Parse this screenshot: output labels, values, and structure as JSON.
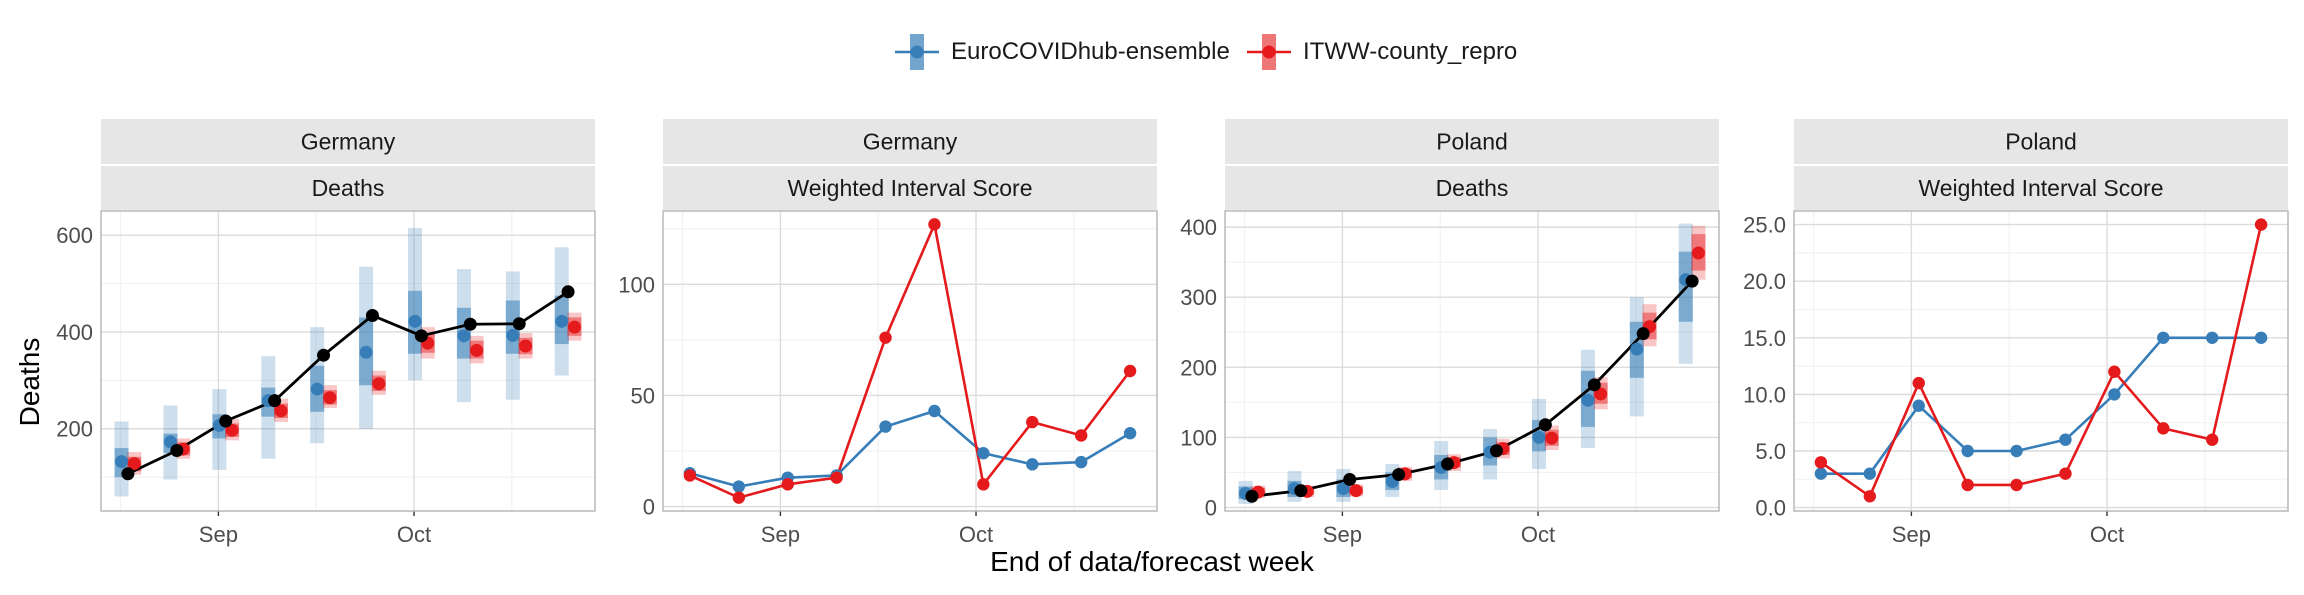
{
  "legend": {
    "items": [
      {
        "label": "EuroCOVIDhub-ensemble",
        "color": "#377EB8"
      },
      {
        "label": "ITWW-county_repro",
        "color": "#E41A1C"
      }
    ]
  },
  "axis_titles": {
    "x": "End of data/forecast week",
    "y": "Deaths"
  },
  "chart_data": [
    {
      "type": "line",
      "strip_top": "Germany",
      "strip_bottom": "Deaths",
      "x_ticks": [
        "Sep",
        "Oct"
      ],
      "y_ticks": [
        200,
        400,
        600
      ],
      "ylim": [
        30,
        650
      ],
      "grid": true,
      "observed": {
        "color": "#000000",
        "x": [
          0,
          1,
          2,
          3,
          4,
          5,
          6,
          7,
          8,
          9
        ],
        "values": [
          107,
          155,
          216,
          258,
          352,
          434,
          392,
          416,
          417,
          483
        ]
      },
      "series": [
        {
          "name": "EuroCOVIDhub-ensemble",
          "color": "#377EB8",
          "x": [
            0,
            1,
            2,
            3,
            4,
            5,
            6,
            7,
            8,
            9
          ],
          "median": [
            132,
            173,
            207,
            258,
            282,
            358,
            422,
            392,
            393,
            422
          ],
          "inner": [
            [
              100,
              160
            ],
            [
              150,
              190
            ],
            [
              180,
              230
            ],
            [
              225,
              285
            ],
            [
              235,
              330
            ],
            [
              290,
              430
            ],
            [
              355,
              485
            ],
            [
              345,
              450
            ],
            [
              355,
              465
            ],
            [
              375,
              475
            ]
          ],
          "outer": [
            [
              60,
              215
            ],
            [
              95,
              248
            ],
            [
              115,
              282
            ],
            [
              138,
              350
            ],
            [
              170,
              410
            ],
            [
              200,
              535
            ],
            [
              300,
              615
            ],
            [
              255,
              530
            ],
            [
              260,
              525
            ],
            [
              310,
              575
            ]
          ]
        },
        {
          "name": "ITWW-county_repro",
          "color": "#E41A1C",
          "x": [
            0,
            1,
            2,
            3,
            4,
            5,
            6,
            7,
            8,
            9
          ],
          "median": [
            128,
            158,
            197,
            237,
            264,
            293,
            377,
            362,
            371,
            410
          ],
          "inner": [
            [
              112,
              142
            ],
            [
              145,
              172
            ],
            [
              183,
              211
            ],
            [
              222,
              252
            ],
            [
              250,
              280
            ],
            [
              278,
              310
            ],
            [
              357,
              397
            ],
            [
              345,
              382
            ],
            [
              354,
              388
            ],
            [
              392,
              430
            ]
          ],
          "outer": [
            [
              105,
              152
            ],
            [
              138,
              180
            ],
            [
              176,
              220
            ],
            [
              214,
              262
            ],
            [
              243,
              290
            ],
            [
              270,
              320
            ],
            [
              345,
              410
            ],
            [
              335,
              392
            ],
            [
              345,
              398
            ],
            [
              382,
              440
            ]
          ]
        }
      ]
    },
    {
      "type": "line",
      "strip_top": "Germany",
      "strip_bottom": "Weighted Interval Score",
      "x_ticks": [
        "Sep",
        "Oct"
      ],
      "y_ticks": [
        0,
        50,
        100
      ],
      "ylim": [
        -2,
        133
      ],
      "grid": true,
      "series": [
        {
          "name": "EuroCOVIDhub-ensemble",
          "color": "#377EB8",
          "x": [
            0,
            1,
            2,
            3,
            4,
            5,
            6,
            7,
            8,
            9
          ],
          "values": [
            15,
            9,
            13,
            14,
            36,
            43,
            24,
            19,
            20,
            33
          ]
        },
        {
          "name": "ITWW-county_repro",
          "color": "#E41A1C",
          "x": [
            0,
            1,
            2,
            3,
            4,
            5,
            6,
            7,
            8,
            9
          ],
          "values": [
            14,
            4,
            10,
            13,
            76,
            127,
            10,
            38,
            32,
            61
          ]
        }
      ]
    },
    {
      "type": "line",
      "strip_top": "Poland",
      "strip_bottom": "Deaths",
      "x_ticks": [
        "Sep",
        "Oct"
      ],
      "y_ticks": [
        0,
        100,
        200,
        300,
        400
      ],
      "ylim": [
        -5,
        423
      ],
      "grid": true,
      "observed": {
        "color": "#000000",
        "x": [
          0,
          1,
          2,
          3,
          4,
          5,
          6,
          7,
          8,
          9
        ],
        "values": [
          16,
          24,
          40,
          47,
          62,
          81,
          118,
          175,
          248,
          323
        ]
      },
      "series": [
        {
          "name": "EuroCOVIDhub-ensemble",
          "color": "#377EB8",
          "x": [
            0,
            1,
            2,
            3,
            4,
            5,
            6,
            7,
            8,
            9
          ],
          "median": [
            20,
            27,
            27,
            37,
            57,
            79,
            100,
            153,
            226,
            325
          ],
          "inner": [
            [
              12,
              30
            ],
            [
              15,
              38
            ],
            [
              15,
              40
            ],
            [
              25,
              50
            ],
            [
              40,
              75
            ],
            [
              60,
              100
            ],
            [
              80,
              125
            ],
            [
              115,
              195
            ],
            [
              185,
              265
            ],
            [
              265,
              365
            ]
          ],
          "outer": [
            [
              5,
              38
            ],
            [
              8,
              52
            ],
            [
              8,
              55
            ],
            [
              15,
              62
            ],
            [
              25,
              95
            ],
            [
              40,
              112
            ],
            [
              55,
              155
            ],
            [
              85,
              225
            ],
            [
              130,
              300
            ],
            [
              205,
              405
            ]
          ]
        },
        {
          "name": "ITWW-county_repro",
          "color": "#E41A1C",
          "x": [
            0,
            1,
            2,
            3,
            4,
            5,
            6,
            7,
            8,
            9
          ],
          "median": [
            22,
            23,
            24,
            48,
            64,
            84,
            99,
            162,
            258,
            363
          ],
          "inner": [
            [
              17,
              28
            ],
            [
              18,
              28
            ],
            [
              19,
              30
            ],
            [
              42,
              55
            ],
            [
              57,
              72
            ],
            [
              75,
              93
            ],
            [
              88,
              111
            ],
            [
              148,
              178
            ],
            [
              240,
              278
            ],
            [
              338,
              390
            ]
          ],
          "outer": [
            [
              14,
              31
            ],
            [
              15,
              31
            ],
            [
              16,
              33
            ],
            [
              38,
              58
            ],
            [
              52,
              76
            ],
            [
              70,
              98
            ],
            [
              82,
              117
            ],
            [
              140,
              186
            ],
            [
              230,
              290
            ],
            [
              325,
              402
            ]
          ]
        }
      ]
    },
    {
      "type": "line",
      "strip_top": "Poland",
      "strip_bottom": "Weighted Interval Score",
      "x_ticks": [
        "Sep",
        "Oct"
      ],
      "y_ticks": [
        "0.0",
        "5.0",
        "10.0",
        "15.0",
        "20.0",
        "25.0"
      ],
      "ylim": [
        -0.3,
        26.2
      ],
      "grid": true,
      "series": [
        {
          "name": "EuroCOVIDhub-ensemble",
          "color": "#377EB8",
          "x": [
            0,
            1,
            2,
            3,
            4,
            5,
            6,
            7,
            8,
            9
          ],
          "values": [
            3,
            3,
            9,
            5,
            5,
            6,
            10,
            15,
            15,
            15
          ]
        },
        {
          "name": "ITWW-county_repro",
          "color": "#E41A1C",
          "x": [
            0,
            1,
            2,
            3,
            4,
            5,
            6,
            7,
            8,
            9
          ],
          "values": [
            4,
            1,
            11,
            2,
            2,
            3,
            12,
            7,
            6,
            25
          ]
        }
      ]
    }
  ]
}
